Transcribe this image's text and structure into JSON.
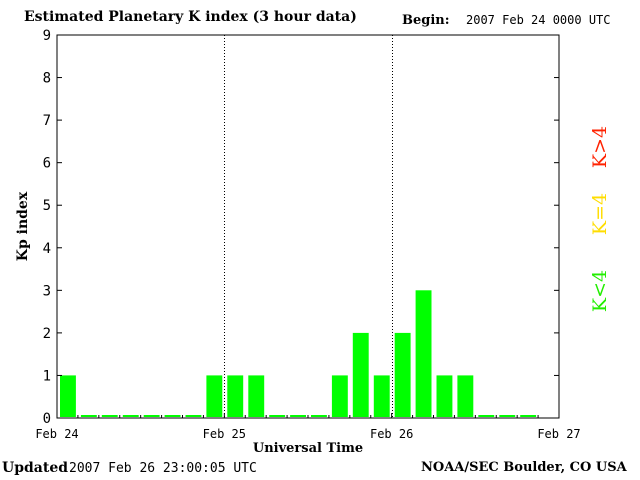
{
  "header": {
    "title": "Estimated Planetary K index (3 hour data)",
    "begin_label": "Begin:",
    "begin_value": "2007 Feb 24 0000 UTC"
  },
  "footer": {
    "updated_label": "Updated",
    "updated_value": "2007 Feb 26 23:00:05 UTC",
    "credit": "NOAA/SEC Boulder, CO USA"
  },
  "legend": [
    {
      "label": "K>4",
      "color": "#ff2200"
    },
    {
      "label": "K=4",
      "color": "#ffdd00"
    },
    {
      "label": "K<4",
      "color": "#22ee00"
    }
  ],
  "chart_data": {
    "type": "bar",
    "title": "Estimated Planetary K index (3 hour data)",
    "xlabel": "Universal Time",
    "ylabel": "Kp index",
    "ylim": [
      0,
      9
    ],
    "yticks": [
      "0",
      "1",
      "2",
      "3",
      "4",
      "5",
      "6",
      "7",
      "8",
      "9"
    ],
    "xticks": [
      "Feb 24",
      "Feb 25",
      "Feb 26",
      "Feb 27"
    ],
    "day_separators": [
      "Feb 25",
      "Feb 26"
    ],
    "bar_color": "#00ff00",
    "values": [
      1,
      0,
      0,
      0,
      0,
      0,
      0,
      1,
      1,
      1,
      0,
      0,
      0,
      1,
      2,
      1,
      2,
      3,
      1,
      1,
      0,
      0,
      0
    ]
  }
}
